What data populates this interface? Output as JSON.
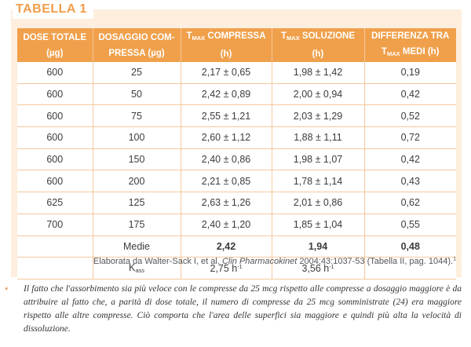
{
  "title": "TABELLA 1",
  "headers": {
    "col1_line1": "DOSE TOTALE",
    "col1_line2": "(µg)",
    "col2_line1": "DOSAGGIO COM-",
    "col2_line2": "PRESSA (µg)",
    "col3_T": "T",
    "col3_sub": "MAX",
    "col3_rest": " COMPRESSA",
    "col3_line2": "(h)",
    "col4_T": "T",
    "col4_sub": "MAX",
    "col4_rest": " SOLUZIONE",
    "col4_line2": "(h)",
    "col5_line1": "DIFFERENZA TRA",
    "col5_T": "T",
    "col5_sub": "MAX",
    "col5_rest": " MEDI (h)"
  },
  "rows": [
    {
      "dose": "600",
      "dosaggio": "25",
      "compressa": "2,17 ± 0,65",
      "soluzione": "1,98 ± 1,42",
      "differenza": "0,19"
    },
    {
      "dose": "600",
      "dosaggio": "50",
      "compressa": "2,42 ± 0,89",
      "soluzione": "2,00 ± 0,94",
      "differenza": "0,42"
    },
    {
      "dose": "600",
      "dosaggio": "75",
      "compressa": "2,55 ± 1,21",
      "soluzione": "2,03 ± 1,29",
      "differenza": "0,52"
    },
    {
      "dose": "600",
      "dosaggio": "100",
      "compressa": "2,60 ± 1,12",
      "soluzione": "1,88 ± 1,11",
      "differenza": "0,72"
    },
    {
      "dose": "600",
      "dosaggio": "150",
      "compressa": "2,40 ± 0,86",
      "soluzione": "1,98 ± 1,07",
      "differenza": "0,42"
    },
    {
      "dose": "600",
      "dosaggio": "200",
      "compressa": "2,21 ± 0,85",
      "soluzione": "1,78 ± 1,14",
      "differenza": "0,43"
    },
    {
      "dose": "625",
      "dosaggio": "125",
      "compressa": "2,63 ± 1,26",
      "soluzione": "2,01 ± 0,86",
      "differenza": "0,62"
    },
    {
      "dose": "700",
      "dosaggio": "175",
      "compressa": "2,40 ± 1,20",
      "soluzione": "1,85 ± 1,04",
      "differenza": "0,55"
    }
  ],
  "medie": {
    "label": "Medie",
    "compressa": "2,42",
    "soluzione": "1,94",
    "differenza": "0,48"
  },
  "kass": {
    "label_K": "K",
    "label_sub": "ass",
    "compressa_val": "2,75 h",
    "compressa_sup": "-1",
    "soluzione_val": "3,56 h",
    "soluzione_sup": "-1"
  },
  "source": {
    "prefix": "Elaborata da Walter-Sack I, et al. ",
    "journal": "Clin Pharmacokinet",
    "suffix": " 2004;43:1037-53 (Tabella II, pag. 1044).",
    "ref": "1"
  },
  "footnote": {
    "star": "*",
    "text": "Il fatto che l'assorbimento sia più veloce con le compresse da 25 mcg rispetto alle compresse a dosaggio maggiore è da attribuire al fatto che, a parità di dose totale, il numero di compresse da 25 mcg somministrate (24) era maggiore rispetto alle altre compresse. Ciò comporta che l'area delle superfici sia maggiore e quindi più alta la velocità di dissoluzione."
  },
  "colors": {
    "accent": "#f0a04b",
    "panel_bg": "#fdeedd",
    "title": "#f09d4a",
    "rule": "#f5c89c"
  }
}
